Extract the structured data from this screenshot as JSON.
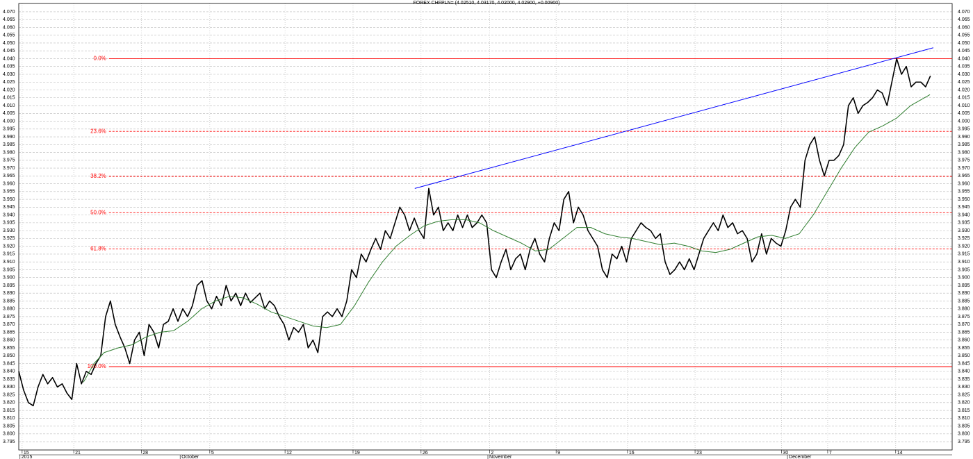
{
  "chart_data": {
    "type": "line",
    "title": "FOREX CHFPLN= (4.02510, 4.03170, 4.02000, 4.02900, +0.00900)",
    "xlim": [
      0,
      193.5
    ],
    "ylim": [
      3.7897,
      4.0753
    ],
    "grid": true,
    "xticks": [
      {
        "value": 0.7,
        "label": "15"
      },
      {
        "value": 11.4,
        "label": "21"
      },
      {
        "value": 25.4,
        "label": "28"
      },
      {
        "value": 39.6,
        "label": "5"
      },
      {
        "value": 55.2,
        "label": "12"
      },
      {
        "value": 69.3,
        "label": "19"
      },
      {
        "value": 83.4,
        "label": "26"
      },
      {
        "value": 97.6,
        "label": "2"
      },
      {
        "value": 111.4,
        "label": "9"
      },
      {
        "value": 126.2,
        "label": "16"
      },
      {
        "value": 140.2,
        "label": "23"
      },
      {
        "value": 158.1,
        "label": "30"
      },
      {
        "value": 167.7,
        "label": "7"
      },
      {
        "value": 181.8,
        "label": "14"
      }
    ],
    "month_labels": [
      {
        "value": 0.4,
        "label": "2015"
      },
      {
        "value": 33.6,
        "label": "October"
      },
      {
        "value": 97.4,
        "label": "November"
      },
      {
        "value": 159.5,
        "label": "December"
      }
    ],
    "yticks": [
      {
        "value": 3.795,
        "label": "3.795"
      },
      {
        "value": 3.8,
        "label": "3.800"
      },
      {
        "value": 3.805,
        "label": "3.805"
      },
      {
        "value": 3.81,
        "label": "3.810"
      },
      {
        "value": 3.815,
        "label": "3.815"
      },
      {
        "value": 3.82,
        "label": "3.820"
      },
      {
        "value": 3.825,
        "label": "3.825"
      },
      {
        "value": 3.83,
        "label": "3.830"
      },
      {
        "value": 3.835,
        "label": "3.835"
      },
      {
        "value": 3.84,
        "label": "3.840"
      },
      {
        "value": 3.845,
        "label": "3.845"
      },
      {
        "value": 3.85,
        "label": "3.850"
      },
      {
        "value": 3.855,
        "label": "3.855"
      },
      {
        "value": 3.86,
        "label": "3.860"
      },
      {
        "value": 3.865,
        "label": "3.865"
      },
      {
        "value": 3.87,
        "label": "3.870"
      },
      {
        "value": 3.875,
        "label": "3.875"
      },
      {
        "value": 3.88,
        "label": "3.880"
      },
      {
        "value": 3.885,
        "label": "3.885"
      },
      {
        "value": 3.89,
        "label": "3.890"
      },
      {
        "value": 3.895,
        "label": "3.895"
      },
      {
        "value": 3.9,
        "label": "3.900"
      },
      {
        "value": 3.905,
        "label": "3.905"
      },
      {
        "value": 3.91,
        "label": "3.910"
      },
      {
        "value": 3.915,
        "label": "3.915"
      },
      {
        "value": 3.92,
        "label": "3.920"
      },
      {
        "value": 3.925,
        "label": "3.925"
      },
      {
        "value": 3.93,
        "label": "3.930"
      },
      {
        "value": 3.935,
        "label": "3.935"
      },
      {
        "value": 3.94,
        "label": "3.940"
      },
      {
        "value": 3.945,
        "label": "3.945"
      },
      {
        "value": 3.95,
        "label": "3.950"
      },
      {
        "value": 3.955,
        "label": "3.955"
      },
      {
        "value": 3.96,
        "label": "3.960"
      },
      {
        "value": 3.965,
        "label": "3.965"
      },
      {
        "value": 3.97,
        "label": "3.970"
      },
      {
        "value": 3.975,
        "label": "3.975"
      },
      {
        "value": 3.98,
        "label": "3.980"
      },
      {
        "value": 3.985,
        "label": "3.985"
      },
      {
        "value": 3.99,
        "label": "3.990"
      },
      {
        "value": 3.995,
        "label": "3.995"
      },
      {
        "value": 4.0,
        "label": "4.000"
      },
      {
        "value": 4.005,
        "label": "4.005"
      },
      {
        "value": 4.01,
        "label": "4.010"
      },
      {
        "value": 4.015,
        "label": "4.015"
      },
      {
        "value": 4.02,
        "label": "4.020"
      },
      {
        "value": 4.025,
        "label": "4.025"
      },
      {
        "value": 4.03,
        "label": "4.030"
      },
      {
        "value": 4.035,
        "label": "4.035"
      },
      {
        "value": 4.04,
        "label": "4.040"
      },
      {
        "value": 4.045,
        "label": "4.045"
      },
      {
        "value": 4.05,
        "label": "4.050"
      },
      {
        "value": 4.055,
        "label": "4.055"
      },
      {
        "value": 4.06,
        "label": "4.060"
      },
      {
        "value": 4.065,
        "label": "4.065"
      },
      {
        "value": 4.07,
        "label": "4.070"
      }
    ],
    "series": [
      {
        "color": "#000000",
        "width": 1.6,
        "x": [
          0,
          1,
          2,
          3,
          4,
          5,
          6,
          7,
          8,
          9,
          10,
          11,
          12,
          13,
          14,
          15,
          16,
          17,
          18,
          19,
          20,
          21,
          22,
          23,
          24,
          25,
          26,
          27,
          28,
          29,
          30,
          31,
          32,
          33,
          34,
          35,
          36,
          37,
          38,
          39,
          40,
          41,
          42,
          43,
          44,
          45,
          46,
          47,
          48,
          49,
          50,
          51,
          52,
          53,
          54,
          55,
          56,
          57,
          58,
          59,
          60,
          61,
          62,
          63,
          64,
          65,
          66,
          67,
          68,
          69,
          70,
          71,
          72,
          73,
          74,
          75,
          76,
          77,
          78,
          79,
          80,
          81,
          82,
          83,
          84,
          85,
          86,
          87,
          88,
          89,
          90,
          91,
          92,
          93,
          94,
          95,
          96,
          97,
          98,
          99,
          100,
          101,
          102,
          103,
          104,
          105,
          106,
          107,
          108,
          109,
          110,
          111,
          112,
          113,
          114,
          115,
          116,
          117,
          118,
          119,
          120,
          121,
          122,
          123,
          124,
          125,
          126,
          127,
          128,
          129,
          130,
          131,
          132,
          133,
          134,
          135,
          136,
          137,
          138,
          139,
          140,
          141,
          142,
          143,
          144,
          145,
          146,
          147,
          148,
          149,
          150,
          151,
          152,
          153,
          154,
          155,
          156,
          157,
          158,
          159,
          160,
          161,
          162,
          163,
          164,
          165,
          166,
          167,
          168,
          169,
          170,
          171,
          172,
          173,
          174,
          175,
          176,
          177,
          178,
          179,
          180,
          181,
          182,
          183,
          184,
          185,
          186,
          187,
          188,
          189
        ],
        "values": [
          3.84,
          3.828,
          3.82,
          3.818,
          3.83,
          3.838,
          3.832,
          3.836,
          3.83,
          3.832,
          3.826,
          3.822,
          3.845,
          3.832,
          3.84,
          3.838,
          3.845,
          3.85,
          3.875,
          3.885,
          3.87,
          3.862,
          3.855,
          3.845,
          3.86,
          3.865,
          3.85,
          3.87,
          3.865,
          3.855,
          3.87,
          3.872,
          3.88,
          3.872,
          3.88,
          3.875,
          3.882,
          3.895,
          3.898,
          3.885,
          3.88,
          3.888,
          3.882,
          3.895,
          3.885,
          3.89,
          3.882,
          3.89,
          3.884,
          3.887,
          3.89,
          3.88,
          3.885,
          3.882,
          3.875,
          3.87,
          3.86,
          3.868,
          3.865,
          3.87,
          3.855,
          3.86,
          3.852,
          3.875,
          3.878,
          3.875,
          3.88,
          3.875,
          3.885,
          3.905,
          3.9,
          3.915,
          3.91,
          3.918,
          3.925,
          3.918,
          3.93,
          3.925,
          3.935,
          3.945,
          3.94,
          3.93,
          3.938,
          3.93,
          3.925,
          3.957,
          3.94,
          3.945,
          3.93,
          3.935,
          3.93,
          3.94,
          3.932,
          3.94,
          3.932,
          3.935,
          3.94,
          3.935,
          3.905,
          3.9,
          3.91,
          3.918,
          3.905,
          3.912,
          3.915,
          3.905,
          3.918,
          3.925,
          3.915,
          3.91,
          3.925,
          3.935,
          3.93,
          3.95,
          3.955,
          3.935,
          3.945,
          3.94,
          3.93,
          3.925,
          3.92,
          3.905,
          3.9,
          3.915,
          3.912,
          3.92,
          3.91,
          3.925,
          3.93,
          3.935,
          3.932,
          3.93,
          3.925,
          3.928,
          3.91,
          3.902,
          3.905,
          3.91,
          3.905,
          3.912,
          3.905,
          3.915,
          3.925,
          3.93,
          3.935,
          3.93,
          3.94,
          3.932,
          3.935,
          3.928,
          3.93,
          3.925,
          3.91,
          3.915,
          3.928,
          3.915,
          3.925,
          3.922,
          3.92,
          3.93,
          3.945,
          3.95,
          3.945,
          3.975,
          3.985,
          3.99,
          3.975,
          3.965,
          3.975,
          3.975,
          3.978,
          3.985,
          4.01,
          4.015,
          4.005,
          4.01,
          4.012,
          4.015,
          4.02,
          4.018,
          4.01,
          4.025,
          4.04,
          4.03,
          4.035,
          4.022,
          4.025,
          4.025,
          4.022,
          4.029
        ]
      },
      {
        "color": "#2e7d2e",
        "width": 1,
        "x": [
          13.4,
          15.6,
          17.7,
          20.6,
          23.5,
          26.4,
          29.3,
          32.1,
          35,
          37.9,
          40.8,
          43.7,
          46.5,
          49.4,
          52.3,
          55.2,
          58.1,
          61,
          63.8,
          66.7,
          69.6,
          72.5,
          75.4,
          78.2,
          81.1,
          84,
          86.9,
          89.8,
          92.7,
          95.5,
          98.4,
          101.3,
          104.2,
          107.1,
          109.9,
          112.8,
          115.7,
          118.6,
          121.5,
          124.4,
          127.2,
          130.1,
          133,
          135.9,
          138.8,
          141.6,
          144.5,
          147.4,
          150.3,
          153.2,
          156.1,
          158.9,
          161.8,
          164.7,
          167.6,
          170.5,
          173.3,
          176.2,
          179.1,
          182,
          184.9,
          188.9
        ],
        "values": [
          3.833,
          3.845,
          3.852,
          3.855,
          3.857,
          3.862,
          3.865,
          3.866,
          3.872,
          3.88,
          3.885,
          3.888,
          3.887,
          3.883,
          3.878,
          3.875,
          3.872,
          3.869,
          3.868,
          3.87,
          3.882,
          3.897,
          3.91,
          3.92,
          3.927,
          3.933,
          3.936,
          3.937,
          3.937,
          3.935,
          3.93,
          3.926,
          3.922,
          3.917,
          3.918,
          3.925,
          3.932,
          3.932,
          3.928,
          3.926,
          3.925,
          3.923,
          3.921,
          3.922,
          3.92,
          3.917,
          3.916,
          3.918,
          3.922,
          3.926,
          3.927,
          3.925,
          3.928,
          3.94,
          3.955,
          3.97,
          3.983,
          3.993,
          3.997,
          4.002,
          4.01,
          4.017
        ]
      }
    ],
    "trend_line": {
      "color": "#0000ff",
      "x": [
        82.1,
        189.6
      ],
      "values": [
        3.957,
        4.047
      ]
    },
    "fib_color": "#ff0000",
    "fib_start_x": 18.7,
    "fib_levels": [
      {
        "label": "0.0%",
        "value": 4.04,
        "style": "solid"
      },
      {
        "label": "23.6%",
        "value": 3.9935,
        "style": "dashed"
      },
      {
        "label": "38.2%",
        "value": 3.9647,
        "style": "dashed"
      },
      {
        "label": "50.0%",
        "value": 3.9415,
        "style": "dashed"
      },
      {
        "label": "61.8%",
        "value": 3.9183,
        "style": "dashed"
      },
      {
        "label": "100.0%",
        "value": 3.843,
        "style": "solid"
      }
    ]
  }
}
